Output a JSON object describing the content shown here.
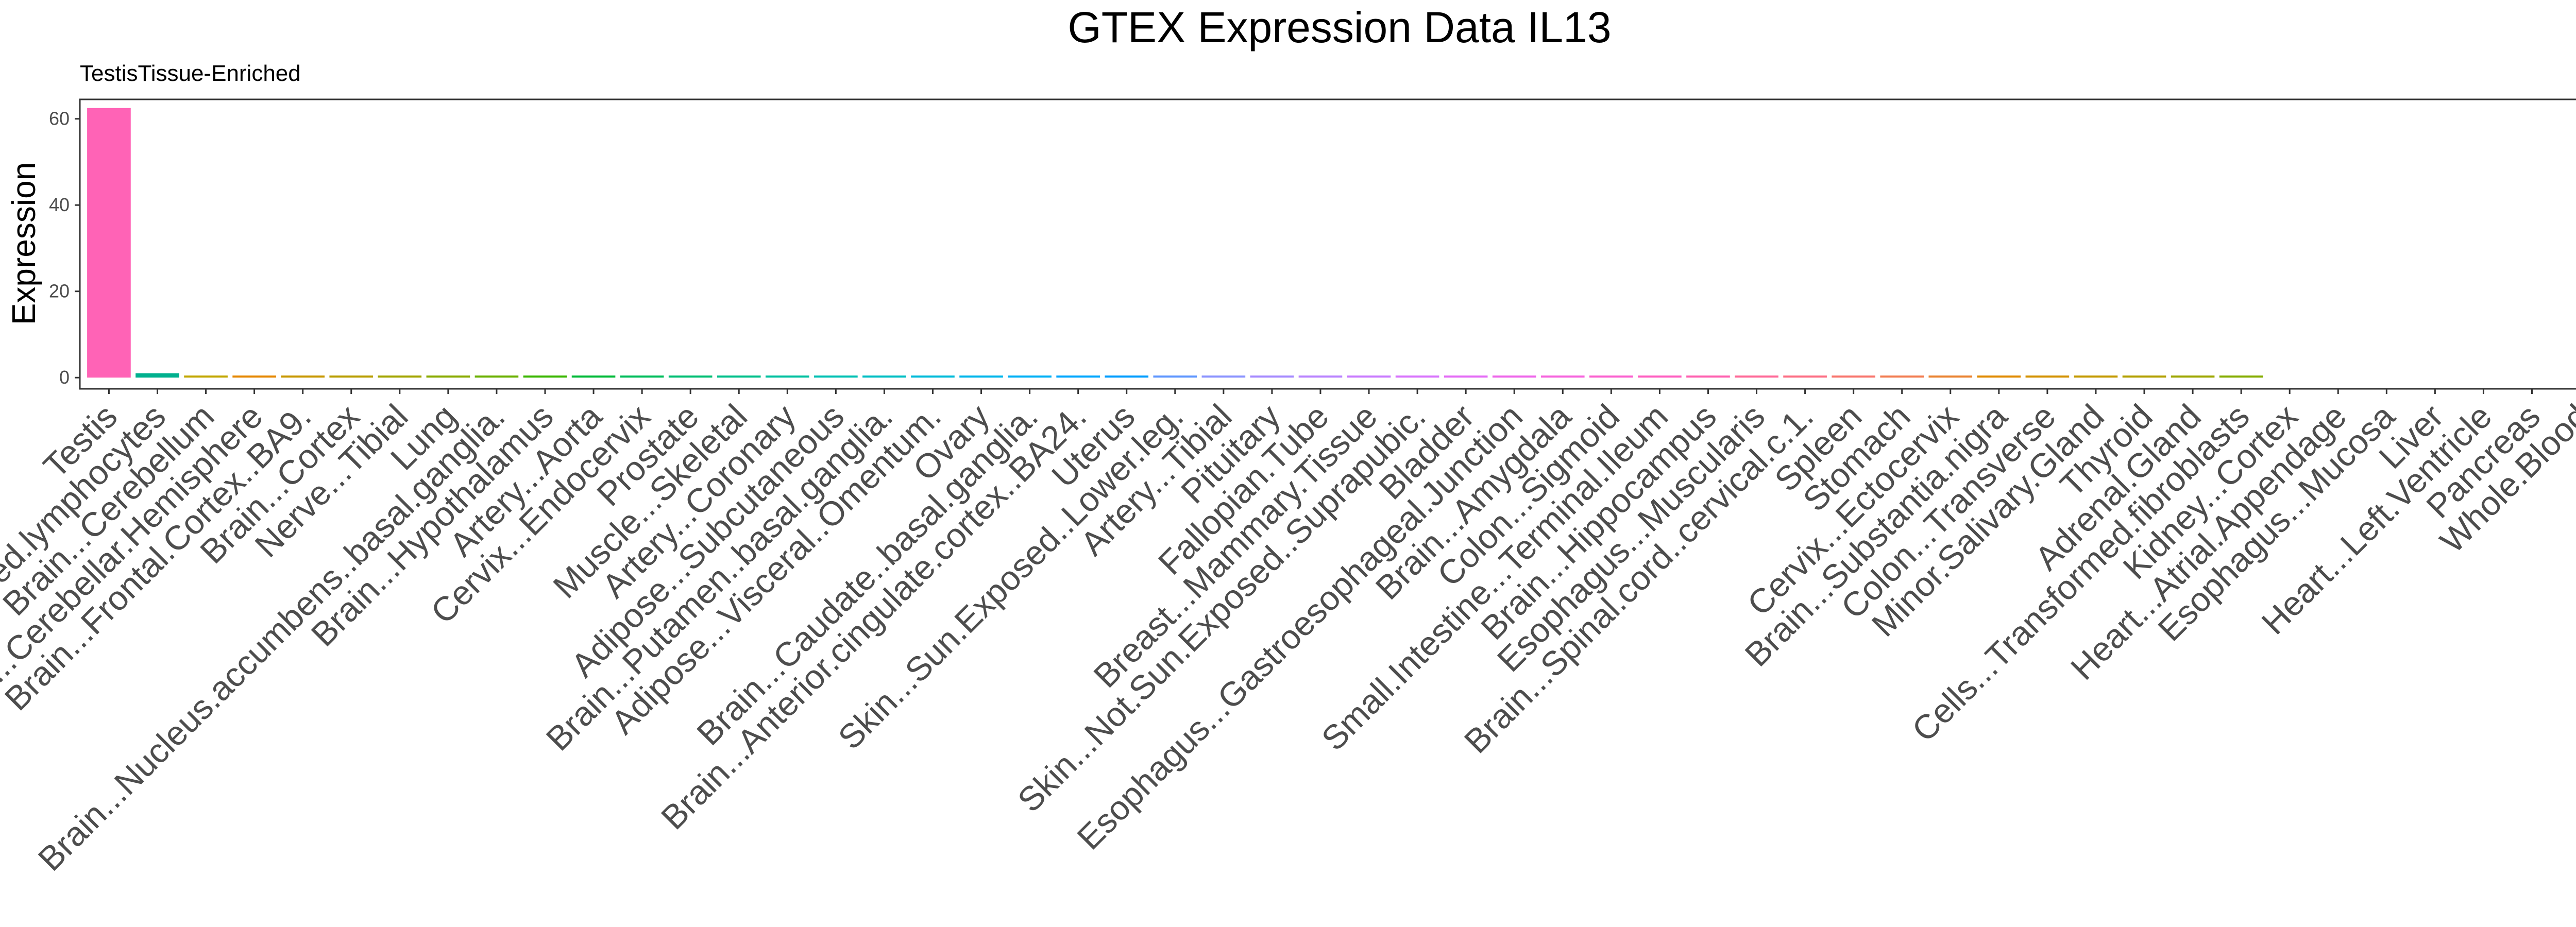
{
  "chart_data": {
    "type": "bar",
    "title": "GTEX Expression Data IL13",
    "subtitle": "TestisTissue-Enriched",
    "xlabel": "",
    "ylabel": "Expression",
    "ylim": [
      -2.6,
      64.5
    ],
    "yticks": [
      0,
      20,
      40,
      60
    ],
    "grid": false,
    "legend": "none",
    "categories": [
      "Testis",
      "Cells...EBV.transformed.lymphocytes",
      "Brain...Cerebellum",
      "Brain...Cerebellar.Hemisphere",
      "Brain...Frontal.Cortex..BA9.",
      "Brain...Cortex",
      "Nerve...Tibial",
      "Lung",
      "Brain...Nucleus.accumbens..basal.ganglia.",
      "Brain...Hypothalamus",
      "Artery...Aorta",
      "Cervix...Endocervix",
      "Prostate",
      "Muscle...Skeletal",
      "Artery...Coronary",
      "Adipose...Subcutaneous",
      "Brain...Putamen..basal.ganglia.",
      "Adipose...Visceral..Omentum.",
      "Ovary",
      "Brain...Caudate..basal.ganglia.",
      "Brain...Anterior.cingulate.cortex..BA24.",
      "Uterus",
      "Skin...Sun.Exposed..Lower.leg.",
      "Artery...Tibial",
      "Pituitary",
      "Fallopian.Tube",
      "Breast...Mammary.Tissue",
      "Skin...Not.Sun.Exposed..Suprapubic.",
      "Bladder",
      "Esophagus...Gastroesophageal.Junction",
      "Brain...Amygdala",
      "Colon...Sigmoid",
      "Small.Intestine...Terminal.Ileum",
      "Brain...Hippocampus",
      "Esophagus...Muscularis",
      "Brain...Spinal.cord..cervical.c.1.",
      "Spleen",
      "Stomach",
      "Cervix...Ectocervix",
      "Brain...Substantia.nigra",
      "Colon...Transverse",
      "Minor.Salivary.Gland",
      "Thyroid",
      "Adrenal.Gland",
      "Cells...Transformed.fibroblasts",
      "Kidney...Cortex",
      "Heart...Atrial.Appendage",
      "Esophagus...Mucosa",
      "Liver",
      "Heart...Left.Ventricle",
      "Pancreas",
      "Whole.Blood"
    ],
    "values": [
      62.5,
      1.0,
      0.45,
      0.4,
      0.35,
      0.32,
      0.3,
      0.3,
      0.28,
      0.27,
      0.26,
      0.25,
      0.25,
      0.24,
      0.23,
      0.22,
      0.21,
      0.2,
      0.2,
      0.19,
      0.18,
      0.18,
      0.17,
      0.17,
      0.16,
      0.16,
      0.15,
      0.15,
      0.14,
      0.14,
      0.13,
      0.13,
      0.12,
      0.12,
      0.11,
      0.11,
      0.1,
      0.1,
      0.1,
      0.09,
      0.09,
      0.08,
      0.08,
      0.07,
      0.07,
      0,
      0,
      0,
      0,
      0,
      0,
      0
    ],
    "colors": [
      "#ff63b6",
      "#00b08e",
      "#c2a700",
      "#e58700",
      "#c89800",
      "#b99e00",
      "#a3a500",
      "#8aab00",
      "#6bb100",
      "#3bb700",
      "#00ba38",
      "#00bd5c",
      "#00bf74",
      "#00c08b",
      "#00c1a0",
      "#00c1b4",
      "#00bfc4",
      "#00bbd9",
      "#00b6eb",
      "#00b0f6",
      "#00a7ff",
      "#009dff",
      "#5f96ff",
      "#8b93ff",
      "#a58aff",
      "#b983ff",
      "#c97bff",
      "#d874fd",
      "#e46cf6",
      "#ee66ea",
      "#f664dd",
      "#fb61d0",
      "#ff5fc1",
      "#ff61b0",
      "#ff6a98",
      "#fd6f84",
      "#f8766d",
      "#f27d52",
      "#ea8331",
      "#e08b00",
      "#d39200",
      "#c49a00",
      "#b3a000",
      "#9ea700",
      "#85ad00",
      "#999999",
      "#999999",
      "#999999",
      "#999999",
      "#999999",
      "#999999",
      "#999999"
    ]
  }
}
